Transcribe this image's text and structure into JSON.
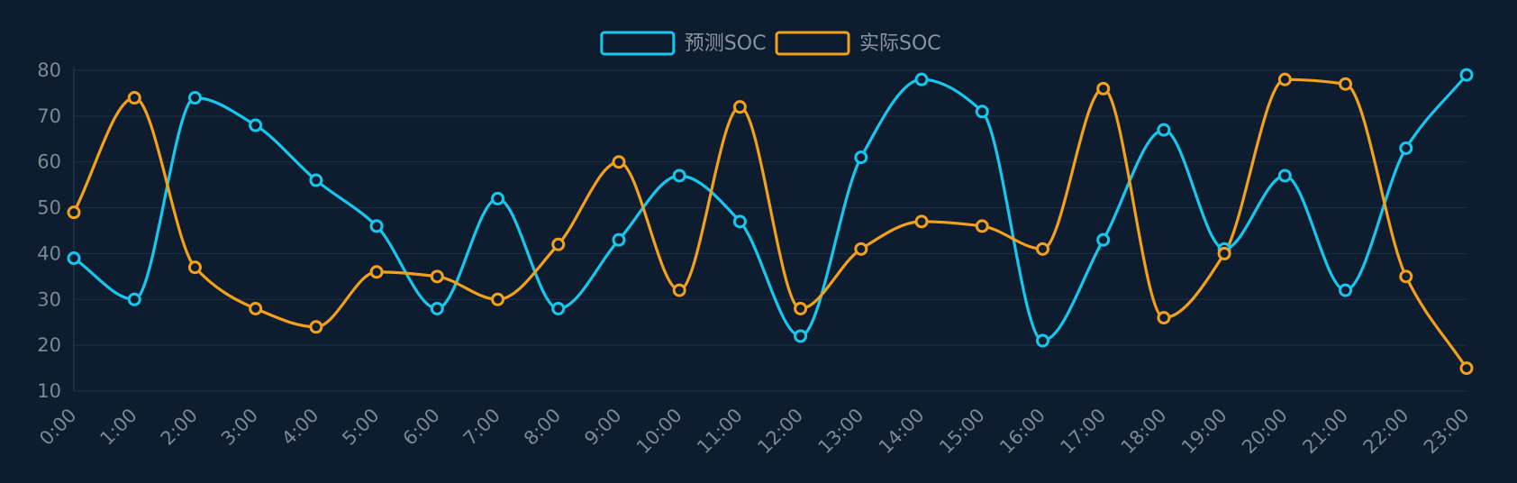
{
  "chart_data": {
    "type": "line",
    "smooth": true,
    "categories": [
      "0:00",
      "1:00",
      "2:00",
      "3:00",
      "4:00",
      "5:00",
      "6:00",
      "7:00",
      "8:00",
      "9:00",
      "10:00",
      "11:00",
      "12:00",
      "13:00",
      "14:00",
      "15:00",
      "16:00",
      "17:00",
      "18:00",
      "19:00",
      "20:00",
      "21:00",
      "22:00",
      "23:00"
    ],
    "series": [
      {
        "name": "预测SOC",
        "color": "#17c8ee",
        "values": [
          39,
          30,
          74,
          68,
          56,
          46,
          28,
          52,
          28,
          43,
          57,
          47,
          22,
          61,
          78,
          71,
          21,
          43,
          67,
          41,
          57,
          32,
          63,
          79
        ]
      },
      {
        "name": "实际SOC",
        "color": "#f3a11b",
        "values": [
          49,
          74,
          37,
          28,
          24,
          36,
          35,
          30,
          42,
          60,
          32,
          72,
          28,
          41,
          47,
          46,
          41,
          76,
          26,
          40,
          78,
          77,
          35,
          15
        ]
      }
    ],
    "y_ticks": [
      10,
      20,
      30,
      40,
      50,
      60,
      70,
      80
    ],
    "ylim": [
      10,
      80
    ],
    "grid": true,
    "legend_position": "top-center",
    "x_label_rotation_deg": -45,
    "colors": {
      "background": "#0d1c2e",
      "grid": "#1c3247",
      "axis": "#244058",
      "tick_text": "#7d8893",
      "legend_text": "#8a949e"
    }
  }
}
